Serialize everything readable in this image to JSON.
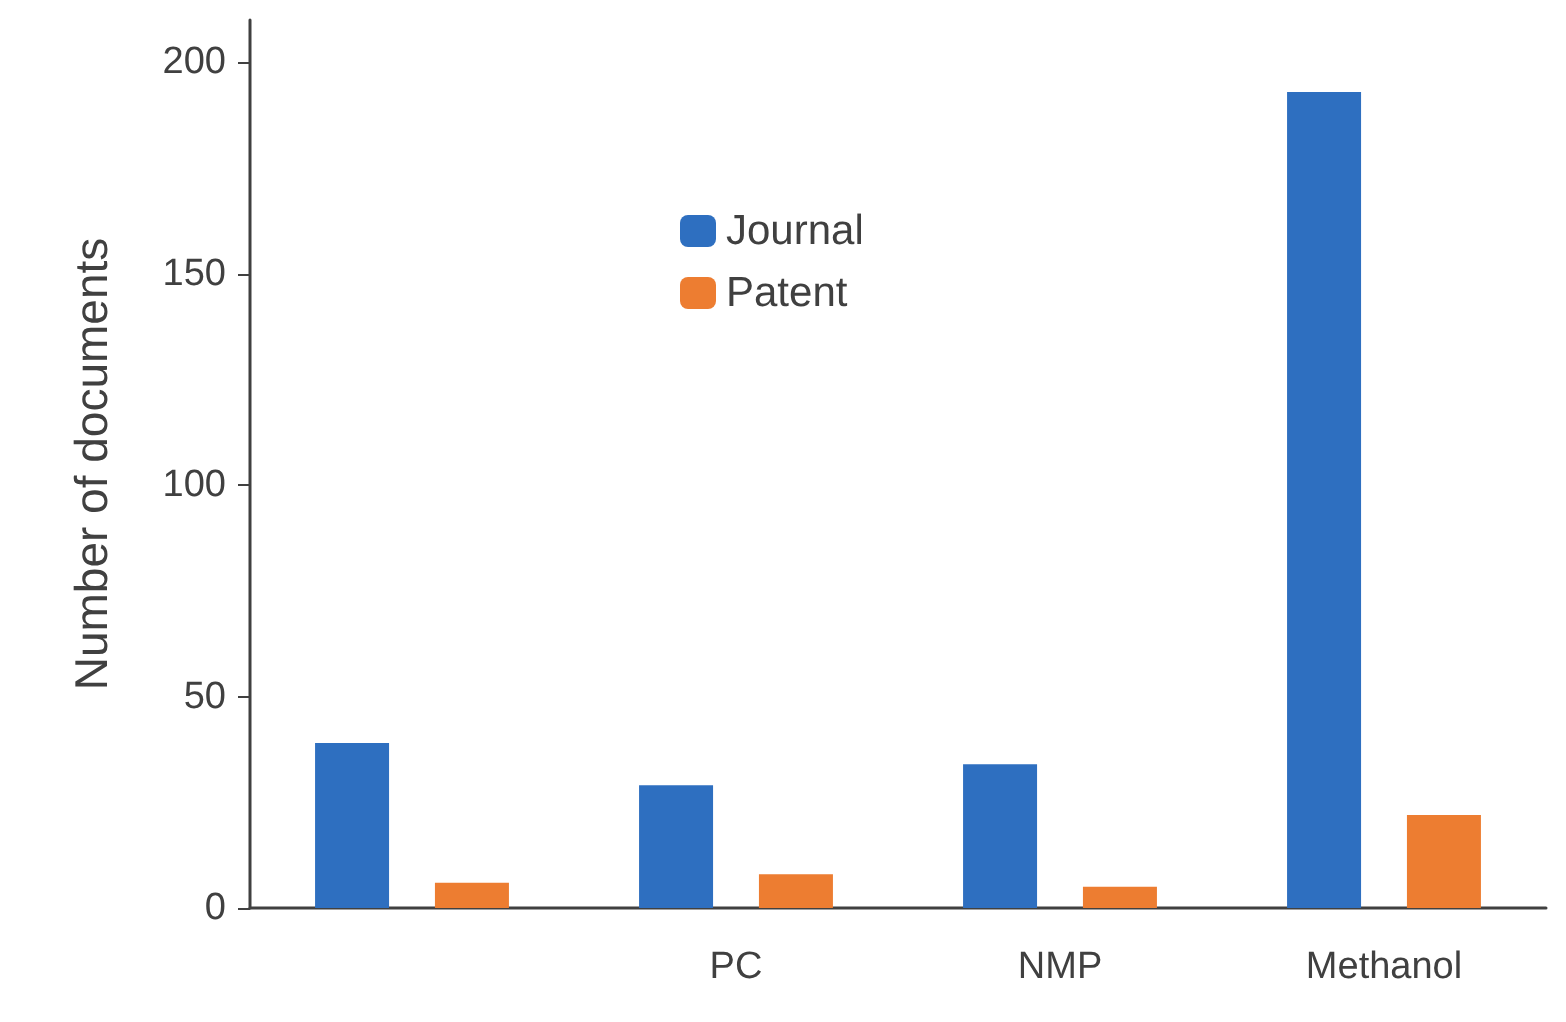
{
  "chart_data": {
    "type": "bar",
    "ylabel": "Number of documents",
    "categories": [
      null,
      "PC",
      "NMP",
      "Methanol"
    ],
    "series": [
      {
        "name": "Journal",
        "color": "#2e6fc0",
        "values": [
          39,
          29,
          34,
          193
        ]
      },
      {
        "name": "Patent",
        "color": "#ed7d31",
        "values": [
          6,
          8,
          5,
          22
        ]
      }
    ],
    "ylim": [
      0,
      210
    ],
    "yticks": [
      0,
      50,
      100,
      150,
      200
    ],
    "grid": false,
    "legend": "top center"
  }
}
